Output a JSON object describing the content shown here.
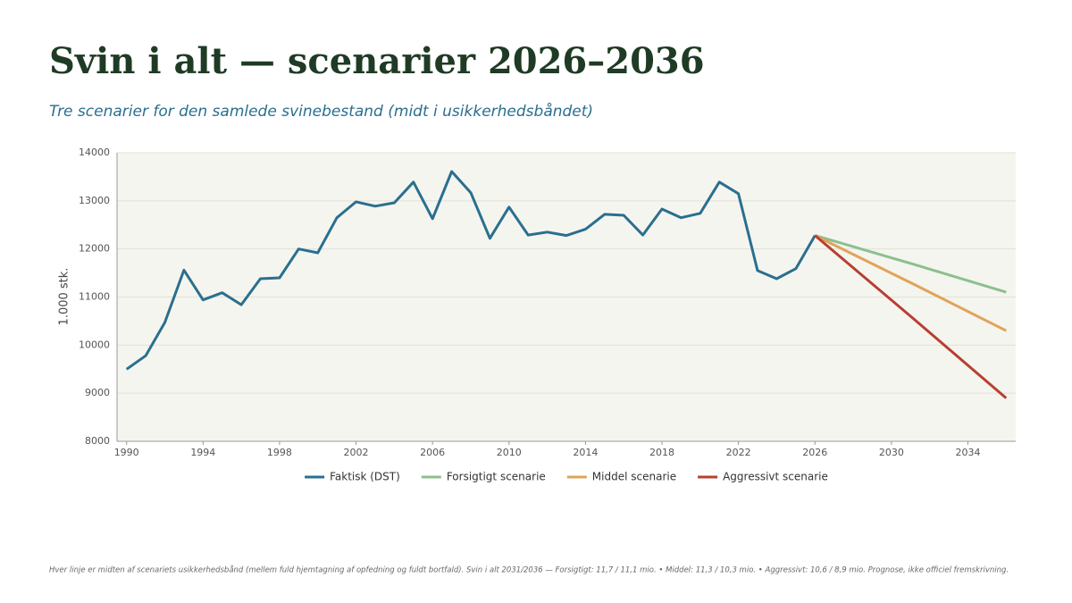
{
  "chart_data": {
    "type": "line",
    "title": "Svin i alt — scenarier 2026–2036",
    "subtitle": "Tre scenarier for den samlede svinebestand (midt i usikkerhedsbåndet)",
    "y_label": "1.000 stk.",
    "note": "Hver linje er midten af scenariets usikkerhedsbånd (mellem fuld hjemtagning af opfedning og fuldt bortfald). Svin i alt 2031/2036 — Forsigtigt: 11,7 / 11,1 mio.  •  Middel: 11,3 / 10,3 mio.  •  Aggressivt: 10,6 / 8,9 mio. Prognose, ikke officiel fremskrivning.",
    "xlim": [
      1989.5,
      2036.5
    ],
    "xticks": [
      1990,
      1994,
      1998,
      2002,
      2006,
      2010,
      2014,
      2018,
      2022,
      2026,
      2030,
      2034
    ],
    "ylim": [
      8000,
      14000
    ],
    "yticks": [
      8000,
      9000,
      10000,
      11000,
      12000,
      13000,
      14000
    ],
    "grid": true,
    "legend": "bottom",
    "series": [
      {
        "name": "Faktisk (DST)",
        "color": "#2a6f8f",
        "x": [
          1990,
          1991,
          1992,
          1993,
          1994,
          1995,
          1996,
          1997,
          1998,
          1999,
          2000,
          2001,
          2002,
          2003,
          2004,
          2005,
          2006,
          2007,
          2008,
          2009,
          2010,
          2011,
          2012,
          2013,
          2014,
          2015,
          2016,
          2017,
          2018,
          2019,
          2020,
          2021,
          2022,
          2023,
          2024,
          2025,
          2026
        ],
        "values": [
          9500,
          9780,
          10470,
          11560,
          10940,
          11090,
          10840,
          11380,
          11400,
          12000,
          11920,
          12650,
          12980,
          12890,
          12960,
          13390,
          12630,
          13610,
          13170,
          12220,
          12870,
          12290,
          12350,
          12280,
          12410,
          12720,
          12700,
          12290,
          12830,
          12650,
          12740,
          13390,
          13150,
          11550,
          11380,
          11590,
          12280
        ]
      },
      {
        "name": "Forsigtigt scenarie",
        "color": "#8dbf8f",
        "x": [
          2026,
          2031,
          2036
        ],
        "values": [
          12280,
          11700,
          11100
        ]
      },
      {
        "name": "Middel scenarie",
        "color": "#e0a458",
        "x": [
          2026,
          2031,
          2036
        ],
        "values": [
          12280,
          11300,
          10300
        ]
      },
      {
        "name": "Aggressivt scenarie",
        "color": "#b83f30",
        "x": [
          2026,
          2031,
          2036
        ],
        "values": [
          12280,
          10600,
          8900
        ]
      }
    ]
  }
}
